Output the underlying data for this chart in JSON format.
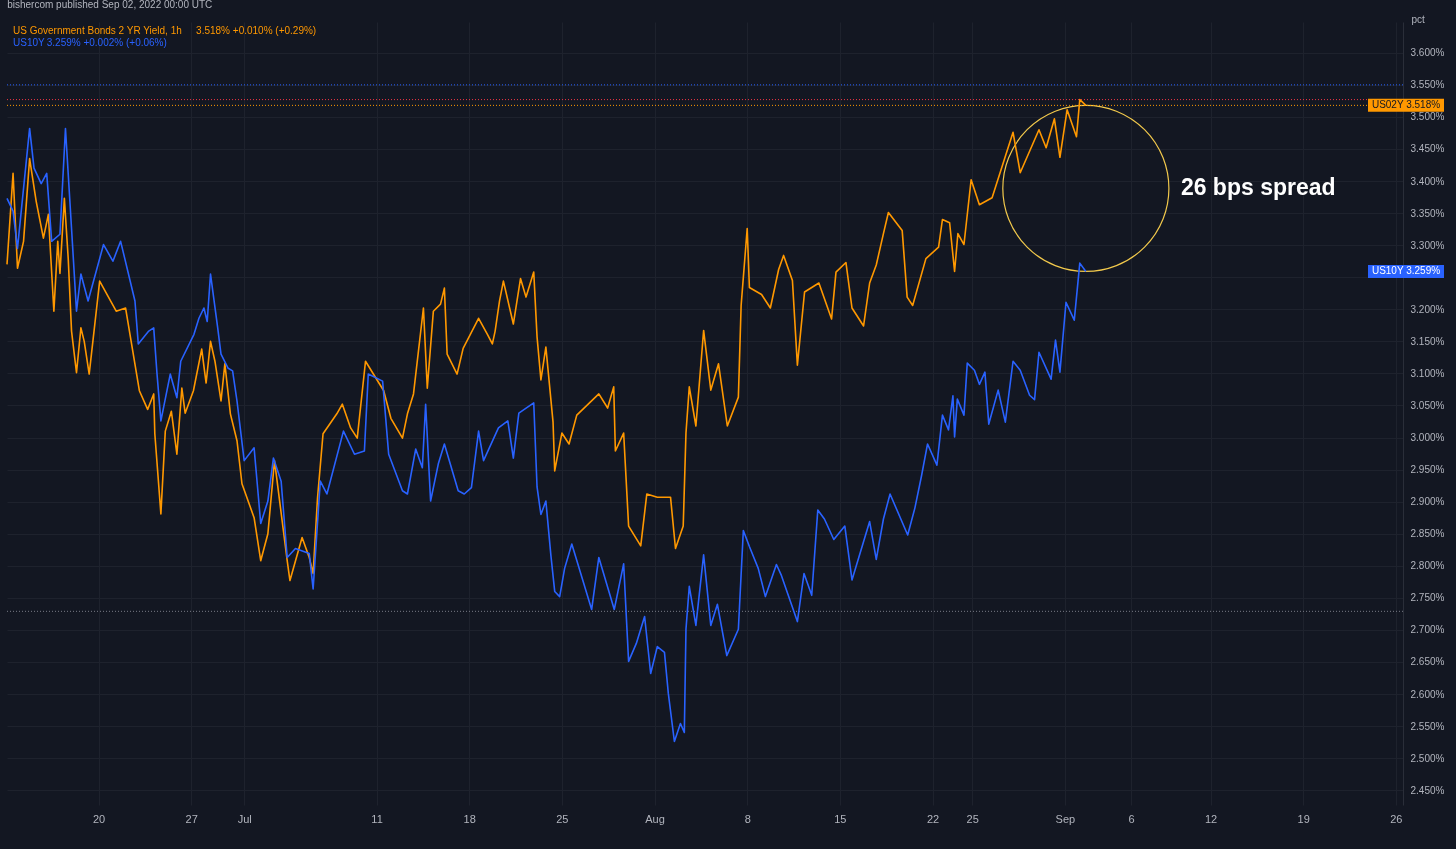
{
  "chart_data": {
    "type": "line",
    "title": "bishercom published Sep 02, 2022 00:00 UTC",
    "ylabel": "pct",
    "legend": "top left",
    "grid": true,
    "line_style": "solid",
    "xlim": [
      "2022-06-13T02:00",
      "2022-09-26T13:00"
    ],
    "xticks": [
      {
        "value": "2022-06-20",
        "label": "20"
      },
      {
        "value": "2022-06-27",
        "label": "27"
      },
      {
        "value": "2022-07-01",
        "label": "Jul"
      },
      {
        "value": "2022-07-11",
        "label": "11"
      },
      {
        "value": "2022-07-18",
        "label": "18"
      },
      {
        "value": "2022-07-25",
        "label": "25"
      },
      {
        "value": "2022-08-01",
        "label": "Aug"
      },
      {
        "value": "2022-08-08",
        "label": "8"
      },
      {
        "value": "2022-08-15",
        "label": "15"
      },
      {
        "value": "2022-08-22",
        "label": "22"
      },
      {
        "value": "2022-08-25",
        "label": "25"
      },
      {
        "value": "2022-09-01",
        "label": "Sep"
      },
      {
        "value": "2022-09-06",
        "label": "6"
      },
      {
        "value": "2022-09-12",
        "label": "12"
      },
      {
        "value": "2022-09-19",
        "label": "19"
      },
      {
        "value": "2022-09-26",
        "label": "26"
      }
    ],
    "ylim": [
      2.427,
      3.648
    ],
    "yticks": [
      {
        "value": 3.6,
        "label": "3.600%"
      },
      {
        "value": 3.55,
        "label": "3.550%"
      },
      {
        "value": 3.5,
        "label": "3.500%"
      },
      {
        "value": 3.45,
        "label": "3.450%"
      },
      {
        "value": 3.4,
        "label": "3.400%"
      },
      {
        "value": 3.35,
        "label": "3.350%"
      },
      {
        "value": 3.3,
        "label": "3.300%"
      },
      {
        "value": 3.25,
        "label": null
      },
      {
        "value": 3.2,
        "label": "3.200%"
      },
      {
        "value": 3.15,
        "label": "3.150%"
      },
      {
        "value": 3.1,
        "label": "3.100%"
      },
      {
        "value": 3.05,
        "label": "3.050%"
      },
      {
        "value": 3.0,
        "label": "3.000%"
      },
      {
        "value": 2.95,
        "label": "2.950%"
      },
      {
        "value": 2.9,
        "label": "2.900%"
      },
      {
        "value": 2.85,
        "label": "2.850%"
      },
      {
        "value": 2.8,
        "label": "2.800%"
      },
      {
        "value": 2.75,
        "label": "2.750%"
      },
      {
        "value": 2.7,
        "label": "2.700%"
      },
      {
        "value": 2.65,
        "label": "2.650%"
      },
      {
        "value": 2.6,
        "label": "2.600%"
      },
      {
        "value": 2.55,
        "label": "2.550%"
      },
      {
        "value": 2.5,
        "label": "2.500%"
      },
      {
        "value": 2.45,
        "label": "2.450%"
      }
    ],
    "series": [
      {
        "name": "US Government Bonds 2 YR Yield, 1h",
        "color": "#ff9800",
        "x": [
          "2022-06-13T02:00",
          "2022-06-13T13:00",
          "2022-06-13T21:00",
          "2022-06-14T08:00",
          "2022-06-14T19:00",
          "2022-06-15T07:00",
          "2022-06-15T20:00",
          "2022-06-16T05:00",
          "2022-06-16T15:00",
          "2022-06-16T22:00",
          "2022-06-17T02:00",
          "2022-06-17T10:00",
          "2022-06-17T17:00",
          "2022-06-17T23:00",
          "2022-06-18T08:00",
          "2022-06-18T16:00",
          "2022-06-18T22:00",
          "2022-06-19T07:00",
          "2022-06-20T02:00",
          "2022-06-21T08:00",
          "2022-06-22T01:00",
          "2022-06-23T02:00",
          "2022-06-23T17:00",
          "2022-06-24T04:00",
          "2022-06-24T06:00",
          "2022-06-24T17:00",
          "2022-06-25T01:00",
          "2022-06-25T12:00",
          "2022-06-25T22:00",
          "2022-06-26T07:00",
          "2022-06-26T13:00",
          "2022-06-27T04:00",
          "2022-06-27T19:00",
          "2022-06-28T03:00",
          "2022-06-28T11:00",
          "2022-06-28T19:00",
          "2022-06-29T06:00",
          "2022-06-29T13:00",
          "2022-06-29T23:00",
          "2022-06-30T11:00",
          "2022-06-30T20:00",
          "2022-07-01T18:00",
          "2022-07-02T06:00",
          "2022-07-02T19:00",
          "2022-07-03T07:00",
          "2022-07-04T06:00",
          "2022-07-04T11:00",
          "2022-07-05T09:00",
          "2022-07-05T22:00",
          "2022-07-06T05:00",
          "2022-07-06T13:00",
          "2022-07-06T23:00",
          "2022-07-08T00:00",
          "2022-07-08T10:00",
          "2022-07-09T01:00",
          "2022-07-09T13:00",
          "2022-07-10T04:00",
          "2022-07-11T13:00",
          "2022-07-12T02:00",
          "2022-07-12T23:00",
          "2022-07-13T08:00",
          "2022-07-13T19:00",
          "2022-07-14T13:00",
          "2022-07-14T20:00",
          "2022-07-15T07:00",
          "2022-07-15T20:00",
          "2022-07-16T03:00",
          "2022-07-16T08:00",
          "2022-07-17T02:00",
          "2022-07-17T13:00",
          "2022-07-18T17:00",
          "2022-07-19T09:00",
          "2022-07-19T18:00",
          "2022-07-19T23:00",
          "2022-07-20T07:00",
          "2022-07-20T14:00",
          "2022-07-21T08:00",
          "2022-07-21T21:00",
          "2022-07-22T07:00",
          "2022-07-22T21:00",
          "2022-07-23T03:00",
          "2022-07-23T10:00",
          "2022-07-23T19:00",
          "2022-07-24T08:00",
          "2022-07-24T11:00",
          "2022-07-25T00:00",
          "2022-07-25T13:00",
          "2022-07-26T03:00",
          "2022-07-27T19:00",
          "2022-07-28T11:00",
          "2022-07-28T22:00",
          "2022-07-29T01:00",
          "2022-07-29T16:00",
          "2022-07-30T01:00",
          "2022-07-30T23:00",
          "2022-07-31T10:00",
          "2022-08-01T05:00",
          "2022-08-02T05:00",
          "2022-08-02T14:00",
          "2022-08-03T04:00",
          "2022-08-03T09:00",
          "2022-08-03T15:00",
          "2022-08-04T03:00",
          "2022-08-04T17:00",
          "2022-08-05T06:00",
          "2022-08-05T20:00",
          "2022-08-06T12:00",
          "2022-08-07T08:00",
          "2022-08-07T13:00",
          "2022-08-08T00:00",
          "2022-08-08T04:00",
          "2022-08-09T02:00",
          "2022-08-09T18:00",
          "2022-08-10T09:00",
          "2022-08-10T18:00",
          "2022-08-11T10:00",
          "2022-08-11T19:00",
          "2022-08-12T08:00",
          "2022-08-13T10:00",
          "2022-08-14T09:00",
          "2022-08-14T17:00",
          "2022-08-15T11:00",
          "2022-08-15T22:00",
          "2022-08-16T19:00",
          "2022-08-17T06:00",
          "2022-08-17T18:00",
          "2022-08-18T07:00",
          "2022-08-18T16:00",
          "2022-08-19T17:00",
          "2022-08-20T02:00",
          "2022-08-20T12:00",
          "2022-08-21T12:00",
          "2022-08-22T11:00",
          "2022-08-22T18:00",
          "2022-08-23T07:00",
          "2022-08-23T16:00",
          "2022-08-23T22:00",
          "2022-08-24T09:00",
          "2022-08-24T22:00",
          "2022-08-25T13:00",
          "2022-08-26T12:00",
          "2022-08-28T02:00",
          "2022-08-28T15:00",
          "2022-08-30T01:00",
          "2022-08-30T14:00",
          "2022-08-31T05:00",
          "2022-08-31T15:00",
          "2022-09-01T04:00",
          "2022-09-01T21:00",
          "2022-09-02T03:00",
          "2022-09-02T14:00"
        ],
        "values": [
          3.27,
          3.412,
          3.264,
          3.306,
          3.435,
          3.368,
          3.311,
          3.348,
          3.197,
          3.306,
          3.256,
          3.373,
          3.279,
          3.166,
          3.101,
          3.171,
          3.15,
          3.099,
          3.244,
          3.197,
          3.202,
          3.073,
          3.044,
          3.068,
          3.006,
          2.881,
          3.01,
          3.041,
          2.974,
          3.077,
          3.038,
          3.073,
          3.138,
          3.085,
          3.15,
          3.119,
          3.057,
          3.115,
          3.037,
          2.995,
          2.928,
          2.875,
          2.808,
          2.85,
          2.964,
          2.808,
          2.777,
          2.844,
          2.813,
          2.788,
          2.906,
          3.006,
          3.037,
          3.052,
          3.015,
          2.999,
          3.119,
          3.073,
          3.03,
          2.999,
          3.037,
          3.068,
          3.202,
          3.077,
          3.197,
          3.208,
          3.233,
          3.13,
          3.099,
          3.139,
          3.186,
          3.161,
          3.146,
          3.166,
          3.213,
          3.244,
          3.177,
          3.248,
          3.219,
          3.258,
          3.157,
          3.09,
          3.141,
          3.024,
          2.948,
          3.007,
          2.99,
          3.035,
          3.068,
          3.046,
          3.079,
          2.979,
          3.007,
          2.862,
          2.831,
          2.912,
          2.907,
          2.907,
          2.827,
          2.862,
          3.007,
          3.079,
          3.018,
          3.167,
          3.074,
          3.115,
          3.018,
          3.063,
          3.206,
          3.326,
          3.234,
          3.223,
          3.202,
          3.262,
          3.284,
          3.245,
          3.113,
          3.227,
          3.241,
          3.185,
          3.258,
          3.273,
          3.202,
          3.174,
          3.241,
          3.269,
          3.318,
          3.351,
          3.323,
          3.219,
          3.206,
          3.279,
          3.297,
          3.34,
          3.335,
          3.259,
          3.318,
          3.301,
          3.402,
          3.363,
          3.374,
          3.476,
          3.413,
          3.48,
          3.452,
          3.497,
          3.437,
          3.511,
          3.469,
          3.527,
          3.518
        ]
      },
      {
        "name": "US10Y",
        "color": "#2962ff",
        "x": [
          "2022-06-13T02:00",
          "2022-06-13T13:00",
          "2022-06-13T21:00",
          "2022-06-14T19:00",
          "2022-06-15T03:00",
          "2022-06-15T16:00",
          "2022-06-16T02:00",
          "2022-06-16T11:00",
          "2022-06-17T02:00",
          "2022-06-17T12:00",
          "2022-06-17T23:00",
          "2022-06-18T08:00",
          "2022-06-18T16:00",
          "2022-06-19T05:00",
          "2022-06-20T09:00",
          "2022-06-21T02:00",
          "2022-06-21T16:00",
          "2022-06-22T18:00",
          "2022-06-23T00:00",
          "2022-06-23T19:00",
          "2022-06-24T04:00",
          "2022-06-24T10:00",
          "2022-06-24T17:00",
          "2022-06-25T10:00",
          "2022-06-25T22:00",
          "2022-06-26T05:00",
          "2022-06-27T05:00",
          "2022-06-27T14:00",
          "2022-06-27T23:00",
          "2022-06-28T05:00",
          "2022-06-28T11:00",
          "2022-06-29T00:00",
          "2022-06-29T06:00",
          "2022-06-29T19:00",
          "2022-06-30T03:00",
          "2022-06-30T11:00",
          "2022-07-01T00:00",
          "2022-07-01T18:00",
          "2022-07-02T06:00",
          "2022-07-02T19:00",
          "2022-07-03T05:00",
          "2022-07-03T19:00",
          "2022-07-04T06:00",
          "2022-07-04T21:00",
          "2022-07-05T22:00",
          "2022-07-06T05:00",
          "2022-07-06T18:00",
          "2022-07-07T06:00",
          "2022-07-08T12:00",
          "2022-07-09T08:00",
          "2022-07-10T02:00",
          "2022-07-10T09:00",
          "2022-07-11T11:00",
          "2022-07-11T22:00",
          "2022-07-12T23:00",
          "2022-07-13T08:00",
          "2022-07-13T23:00",
          "2022-07-14T11:00",
          "2022-07-14T17:00",
          "2022-07-15T02:00",
          "2022-07-15T16:00",
          "2022-07-16T03:00",
          "2022-07-17T04:00",
          "2022-07-17T15:00",
          "2022-07-18T04:00",
          "2022-07-18T17:00",
          "2022-07-19T02:00",
          "2022-07-20T05:00",
          "2022-07-20T22:00",
          "2022-07-21T08:00",
          "2022-07-21T18:00",
          "2022-07-22T21:00",
          "2022-07-23T03:00",
          "2022-07-23T10:00",
          "2022-07-23T19:00",
          "2022-07-24T04:00",
          "2022-07-24T11:00",
          "2022-07-24T20:00",
          "2022-07-25T05:00",
          "2022-07-25T18:00",
          "2022-07-27T06:00",
          "2022-07-27T19:00",
          "2022-07-28T23:00",
          "2022-07-29T16:00",
          "2022-07-30T01:00",
          "2022-07-30T15:00",
          "2022-07-31T06:00",
          "2022-07-31T17:00",
          "2022-08-01T05:00",
          "2022-08-01T18:00",
          "2022-08-02T01:00",
          "2022-08-02T12:00",
          "2022-08-02T23:00",
          "2022-08-03T06:00",
          "2022-08-03T09:00",
          "2022-08-03T15:00",
          "2022-08-04T03:00",
          "2022-08-04T17:00",
          "2022-08-05T06:00",
          "2022-08-05T18:00",
          "2022-08-06T11:00",
          "2022-08-07T08:00",
          "2022-08-07T17:00",
          "2022-08-08T04:00",
          "2022-08-08T20:00",
          "2022-08-09T09:00",
          "2022-08-10T05:00",
          "2022-08-10T14:00",
          "2022-08-11T19:00",
          "2022-08-12T07:00",
          "2022-08-12T21:00",
          "2022-08-13T08:00",
          "2022-08-13T20:00",
          "2022-08-14T13:00",
          "2022-08-15T09:00",
          "2022-08-15T22:00",
          "2022-08-17T06:00",
          "2022-08-17T18:00",
          "2022-08-18T07:00",
          "2022-08-18T19:00",
          "2022-08-20T03:00",
          "2022-08-20T16:00",
          "2022-08-21T04:00",
          "2022-08-21T15:00",
          "2022-08-22T08:00",
          "2022-08-22T18:00",
          "2022-08-23T05:00",
          "2022-08-23T13:00",
          "2022-08-23T16:00",
          "2022-08-23T21:00",
          "2022-08-24T09:00",
          "2022-08-24T15:00",
          "2022-08-25T04:00",
          "2022-08-25T13:00",
          "2022-08-25T23:00",
          "2022-08-26T06:00",
          "2022-08-26T23:00",
          "2022-08-27T12:00",
          "2022-08-28T02:00",
          "2022-08-28T15:00",
          "2022-08-29T08:00",
          "2022-08-29T17:00",
          "2022-08-30T01:00",
          "2022-08-30T23:00",
          "2022-08-31T07:00",
          "2022-08-31T15:00",
          "2022-09-01T02:00",
          "2022-09-01T17:00",
          "2022-09-02T03:00",
          "2022-09-02T14:00"
        ],
        "values": [
          3.373,
          3.353,
          3.295,
          3.482,
          3.42,
          3.396,
          3.412,
          3.306,
          3.317,
          3.482,
          3.326,
          3.197,
          3.255,
          3.213,
          3.301,
          3.275,
          3.306,
          3.213,
          3.146,
          3.166,
          3.171,
          3.099,
          3.026,
          3.099,
          3.062,
          3.119,
          3.161,
          3.186,
          3.202,
          3.181,
          3.255,
          3.171,
          3.13,
          3.108,
          3.104,
          3.057,
          2.964,
          2.984,
          2.866,
          2.901,
          2.968,
          2.932,
          2.813,
          2.827,
          2.819,
          2.764,
          2.932,
          2.912,
          3.01,
          2.974,
          2.979,
          3.099,
          3.088,
          2.974,
          2.917,
          2.912,
          2.982,
          2.953,
          3.052,
          2.901,
          2.959,
          2.99,
          2.917,
          2.912,
          2.922,
          3.01,
          2.964,
          3.015,
          3.026,
          2.968,
          3.038,
          3.054,
          2.923,
          2.88,
          2.901,
          2.817,
          2.76,
          2.752,
          2.796,
          2.834,
          2.732,
          2.813,
          2.732,
          2.803,
          2.651,
          2.679,
          2.721,
          2.632,
          2.674,
          2.665,
          2.601,
          2.526,
          2.554,
          2.54,
          2.701,
          2.768,
          2.707,
          2.817,
          2.707,
          2.74,
          2.66,
          2.701,
          2.855,
          2.83,
          2.796,
          2.752,
          2.802,
          2.785,
          2.713,
          2.788,
          2.754,
          2.887,
          2.873,
          2.841,
          2.862,
          2.778,
          2.869,
          2.81,
          2.873,
          2.912,
          2.848,
          2.89,
          2.94,
          2.99,
          2.957,
          3.035,
          3.012,
          3.065,
          3.001,
          3.06,
          3.035,
          3.116,
          3.105,
          3.083,
          3.102,
          3.021,
          3.074,
          3.024,
          3.119,
          3.105,
          3.066,
          3.059,
          3.133,
          3.091,
          3.152,
          3.102,
          3.211,
          3.183,
          3.272,
          3.259
        ]
      }
    ],
    "ref_lines": [
      {
        "axis": "y",
        "value": 3.55,
        "color": "#2962ff",
        "line_style": "dotted"
      },
      {
        "axis": "y",
        "value": 3.527,
        "color": "#f23645",
        "line_style": "dotted"
      },
      {
        "axis": "y",
        "value": 3.518,
        "color": "#ff9800",
        "line_style": "dotted"
      },
      {
        "axis": "y",
        "value": 2.729,
        "color": "#787b86",
        "line_style": "dotted"
      }
    ],
    "annotations": [
      "3.518%  +0.010% (+0.29%)",
      "3.259%  +0.002% (+0.06%)",
      "US02Y  3.518%",
      "US10Y  3.259%",
      "26 bps spread"
    ]
  }
}
